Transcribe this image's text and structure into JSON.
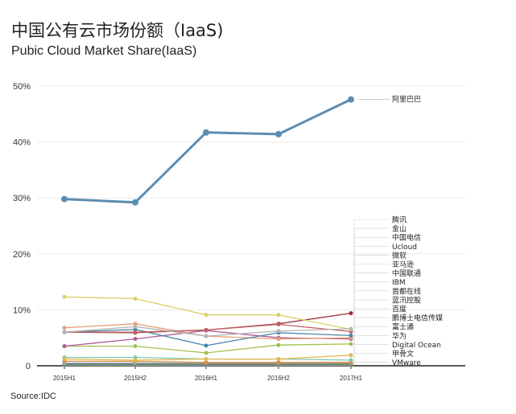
{
  "title": "中国公有云市场份额（IaaS)",
  "subtitle": "Pubic Cloud Market Share(IaaS)",
  "source": "Source:IDC",
  "chart_data": {
    "type": "line",
    "categories": [
      "2015H1",
      "2015H2",
      "2016H1",
      "2016H2",
      "2017H1"
    ],
    "y_ticks": [
      "0",
      "10%",
      "20%",
      "30%",
      "40%",
      "50%"
    ],
    "ylim": [
      0,
      50
    ],
    "grid": true,
    "legend": "direct labels at right",
    "series": [
      {
        "name": "阿里巴巴",
        "color": "#5b8db3",
        "values": [
          29.8,
          29.2,
          41.7,
          41.4,
          47.6
        ]
      },
      {
        "name": "腾讯",
        "color": "#b5b5b5",
        "values": [
          6.0,
          7.0,
          5.3,
          6.2,
          6.6
        ]
      },
      {
        "name": "金山",
        "color": "#d9d065",
        "values": [
          12.3,
          12.0,
          9.1,
          9.1,
          6.5
        ]
      },
      {
        "name": "中国电信",
        "color": "#c06060",
        "values": [
          6.0,
          6.0,
          6.4,
          7.4,
          6.1
        ]
      },
      {
        "name": "Ucloud",
        "color": "#4a84aa",
        "values": [
          6.0,
          6.5,
          3.6,
          5.9,
          5.4
        ]
      },
      {
        "name": "微软",
        "color": "#e89e7a",
        "values": [
          6.8,
          7.5,
          5.3,
          4.8,
          5.0
        ]
      },
      {
        "name": "亚马逊",
        "color": "#b05a9a",
        "values": [
          3.5,
          4.8,
          6.3,
          5.0,
          4.8
        ]
      },
      {
        "name": "中国联通",
        "color": "#9fc24f",
        "values": [
          3.5,
          3.5,
          2.3,
          3.7,
          3.9
        ]
      },
      {
        "name": "IBM",
        "color": "#e3b94d",
        "values": [
          1.2,
          1.0,
          1.2,
          1.2,
          1.9
        ]
      },
      {
        "name": "首都在线",
        "color": "#7dc8b5",
        "values": [
          1.5,
          1.5,
          1.2,
          1.2,
          1.0
        ]
      },
      {
        "name": "蓝汛控股",
        "color": "#e08a3a",
        "values": [
          0.8,
          0.8,
          0.6,
          0.6,
          0.6
        ]
      },
      {
        "name": "百度",
        "color": "#8fb0d8",
        "values": [
          0.5,
          0.5,
          0.5,
          0.5,
          0.5
        ]
      },
      {
        "name": "鹏博士电信传媒",
        "color": "#9b2f3f",
        "values": [
          6.0,
          5.9,
          6.4,
          7.5,
          9.4
        ]
      },
      {
        "name": "富士通",
        "color": "#8a8a3a",
        "values": [
          0.4,
          0.4,
          0.4,
          0.4,
          0.4
        ]
      },
      {
        "name": "华为",
        "color": "#6a6a9a",
        "values": [
          0.3,
          0.3,
          0.3,
          0.3,
          0.3
        ]
      },
      {
        "name": "Digital Ocean",
        "color": "#5aa070",
        "values": [
          0.2,
          0.2,
          0.2,
          0.2,
          0.2
        ]
      },
      {
        "name": "甲骨文",
        "color": "#c9a040",
        "values": [
          0.2,
          0.2,
          0.2,
          0.2,
          0.2
        ]
      },
      {
        "name": "VMware",
        "color": "#a0a0c0",
        "values": [
          0.1,
          0.1,
          0.1,
          0.1,
          0.1
        ]
      }
    ]
  }
}
